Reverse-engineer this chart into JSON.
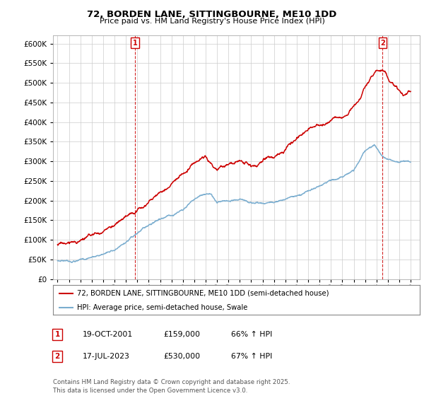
{
  "title": "72, BORDEN LANE, SITTINGBOURNE, ME10 1DD",
  "subtitle": "Price paid vs. HM Land Registry's House Price Index (HPI)",
  "ylim": [
    0,
    620000
  ],
  "yticks": [
    0,
    50000,
    100000,
    150000,
    200000,
    250000,
    300000,
    350000,
    400000,
    450000,
    500000,
    550000,
    600000
  ],
  "xlim_start": 1994.6,
  "xlim_end": 2026.8,
  "x_year_start": 1995,
  "x_year_end": 2026,
  "grid_color": "#cccccc",
  "bg_color": "#ffffff",
  "red_color": "#cc0000",
  "blue_color": "#7aadcf",
  "sale1_year": 2001.8,
  "sale1_price": 159000,
  "sale2_year": 2023.54,
  "sale2_price": 530000,
  "legend_label_red": "72, BORDEN LANE, SITTINGBOURNE, ME10 1DD (semi-detached house)",
  "legend_label_blue": "HPI: Average price, semi-detached house, Swale",
  "annotation1_label": "1",
  "annotation2_label": "2",
  "table_row1": [
    "1",
    "19-OCT-2001",
    "£159,000",
    "66% ↑ HPI"
  ],
  "table_row2": [
    "2",
    "17-JUL-2023",
    "£530,000",
    "67% ↑ HPI"
  ],
  "footnote": "Contains HM Land Registry data © Crown copyright and database right 2025.\nThis data is licensed under the Open Government Licence v3.0."
}
